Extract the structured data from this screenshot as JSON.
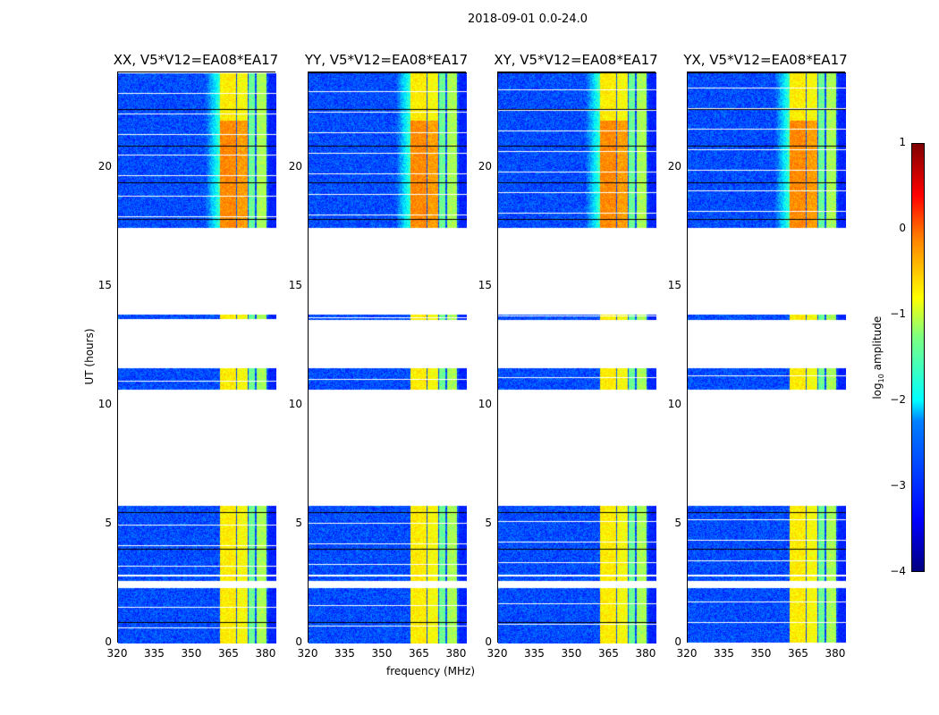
{
  "suptitle": "2018-09-01 0.0-24.0",
  "xlabel": "frequency (MHz)",
  "ylabel": "UT (hours)",
  "colorbar": {
    "label_prefix": "log",
    "label_sub": "10",
    "label_suffix": " amplitude",
    "ticks": [
      "1",
      "0",
      "−1",
      "−2",
      "−3",
      "−4"
    ],
    "range": [
      -4,
      1
    ]
  },
  "chart_data": {
    "type": "heatmap",
    "panels": [
      {
        "title": "XX, V5*V12=EA08*EA17"
      },
      {
        "title": "YY, V5*V12=EA08*EA17"
      },
      {
        "title": "XY, V5*V12=EA08*EA17"
      },
      {
        "title": "YX, V5*V12=EA08*EA17"
      }
    ],
    "xlim": [
      320,
      384
    ],
    "ylim": [
      0,
      24
    ],
    "xticks": [
      "320",
      "335",
      "350",
      "365",
      "380"
    ],
    "xtick_values": [
      320,
      335,
      350,
      365,
      380
    ],
    "yticks": [
      "0",
      "5",
      "10",
      "15",
      "20"
    ],
    "ytick_values": [
      0,
      5,
      10,
      15,
      20
    ],
    "data_segments_hours": [
      [
        0,
        2.35
      ],
      [
        2.65,
        2.85
      ],
      [
        2.9,
        5.8
      ],
      [
        10.7,
        11.6
      ],
      [
        13.6,
        13.85
      ],
      [
        17.5,
        24
      ]
    ],
    "rfi_bands_mhz": [
      {
        "range": [
          361,
          367.6
        ],
        "level": -0.8
      },
      {
        "range": [
          367.9,
          372.3
        ],
        "level": -0.9
      },
      {
        "range": [
          372.7,
          375.3
        ],
        "level": -1.6
      },
      {
        "range": [
          375.7,
          380
        ],
        "level": -1.3
      }
    ],
    "background_level": -3.0,
    "colormap": "jet"
  }
}
